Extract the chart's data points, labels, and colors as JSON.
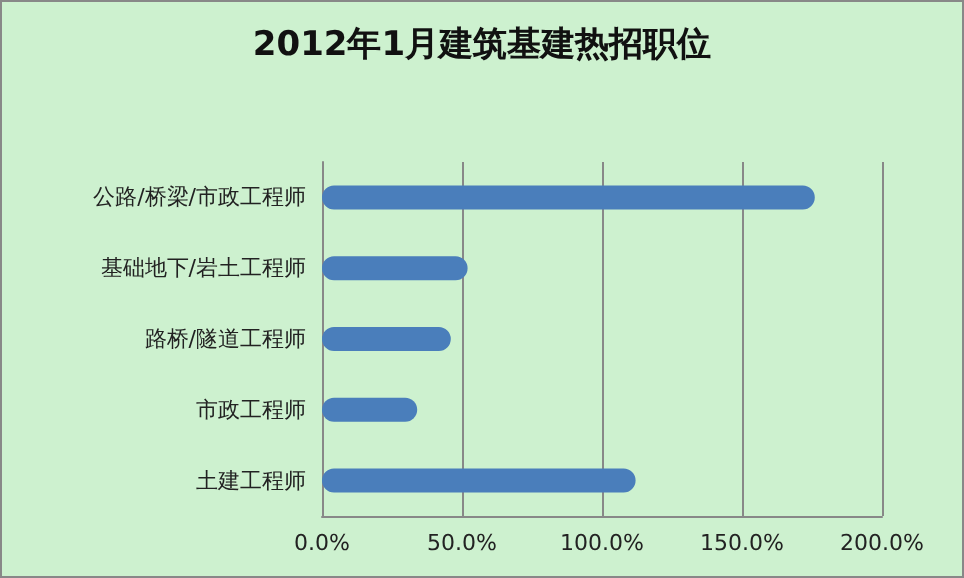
{
  "chart_data": {
    "type": "bar",
    "orientation": "horizontal",
    "title": "2012年1月建筑基建热招职位",
    "categories": [
      "公路/桥梁/市政工程师",
      "基础地下/岩土工程师",
      "路桥/隧道工程师",
      "市政工程师",
      "土建工程师"
    ],
    "values": [
      176,
      52,
      46,
      34,
      112
    ],
    "color": "#4a7ebb",
    "xlim": [
      0,
      200
    ],
    "xticks": [
      {
        "value": 0,
        "label": "0.0%"
      },
      {
        "value": 50,
        "label": "50.0%"
      },
      {
        "value": 100,
        "label": "100.0%"
      },
      {
        "value": 150,
        "label": "150.0%"
      },
      {
        "value": 200,
        "label": "200.0%"
      }
    ],
    "grid": "x"
  }
}
